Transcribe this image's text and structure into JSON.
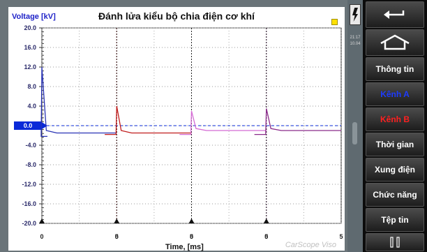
{
  "chart": {
    "title": "Đánh lửa kiểu bộ chia điện cơ khí",
    "y_unit_label": "Voltage [kV]",
    "x_unit_label": "Time, [ms]",
    "brand": "CarScope Viso",
    "y_ticks": [
      "20.0",
      "16.0",
      "12.0",
      "8.0",
      "4.0",
      "0.0",
      "-4.0",
      "-8.0",
      "-12.0",
      "-16.0",
      "-20.0"
    ],
    "x_ticks": [
      "0",
      "5",
      "0",
      "5",
      "0",
      "5",
      "0",
      "5"
    ],
    "colors": {
      "blue": "#2832b4",
      "red": "#c01c1c",
      "pink": "#d46ad4",
      "violet": "#8a2a8a",
      "zero_marker": "#0a2ad8",
      "marker": "#ffe000"
    }
  },
  "chart_data": {
    "type": "line",
    "title": "Đánh lửa kiểu bộ chia điện cơ khí",
    "xlabel": "Time, [ms]",
    "ylabel": "Voltage [kV]",
    "ylim": [
      -20,
      20
    ],
    "x_segments": [
      {
        "from": 0,
        "to": 5
      },
      {
        "from": 0,
        "to": 5
      },
      {
        "from": 0,
        "to": 5
      },
      {
        "from": 0,
        "to": 5
      }
    ],
    "grid": true,
    "series": [
      {
        "color": "#2832b4",
        "values": [
          [
            0,
            -2.2
          ],
          [
            0,
            12.0
          ],
          [
            0.3,
            -1.0
          ],
          [
            1.0,
            -1.5
          ],
          [
            5,
            -1.5
          ]
        ]
      },
      {
        "color": "#c01c1c",
        "values": [
          [
            0,
            -1.8
          ],
          [
            0,
            4.0
          ],
          [
            0.3,
            -1.0
          ],
          [
            1.0,
            -1.5
          ],
          [
            5,
            -1.5
          ]
        ]
      },
      {
        "color": "#d46ad4",
        "values": [
          [
            0,
            -1.8
          ],
          [
            0,
            3.0
          ],
          [
            0.3,
            -0.6
          ],
          [
            1.0,
            -1.0
          ],
          [
            5,
            -1.0
          ]
        ]
      },
      {
        "color": "#8a2a8a",
        "values": [
          [
            0,
            -1.8
          ],
          [
            0,
            3.5
          ],
          [
            0.3,
            -0.6
          ],
          [
            1.0,
            -1.0
          ],
          [
            5,
            -1.0
          ]
        ]
      }
    ]
  },
  "status": {
    "clock_line1": "21:17",
    "clock_line2": "10.04"
  },
  "sidebar": {
    "info": "Thông tin",
    "channel_a": "Kênh A",
    "channel_b": "Kênh B",
    "time": "Thời gian",
    "pulse": "Xung điện",
    "functions": "Chức năng",
    "files": "Tệp tin"
  }
}
